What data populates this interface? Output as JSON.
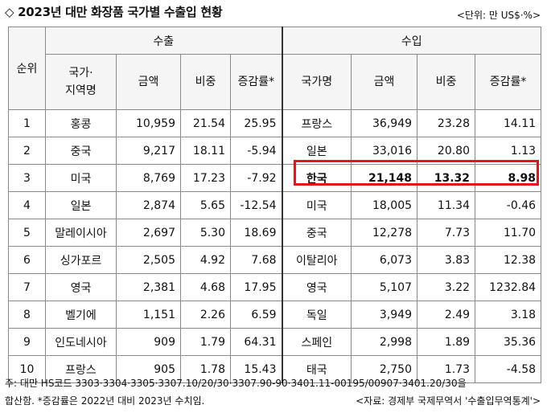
{
  "title": "◇ 2023년 대만 화장품 국가별 수출입 현황",
  "unit": "<단위: 만 US$·%>",
  "headers": {
    "rank": "순위",
    "export": "수출",
    "import": "수입",
    "export_cols": [
      "국가·\n지역명",
      "금액",
      "비중",
      "증감률*"
    ],
    "import_cols": [
      "국가명",
      "금액",
      "비중",
      "증감률*"
    ]
  },
  "rows": [
    {
      "rank": "1",
      "ex_country": "홍콩",
      "ex_amount": "10,959",
      "ex_share": "21.54",
      "ex_growth": "25.95",
      "im_country": "프랑스",
      "im_amount": "36,949",
      "im_share": "23.28",
      "im_growth": "14.11"
    },
    {
      "rank": "2",
      "ex_country": "중국",
      "ex_amount": "9,217",
      "ex_share": "18.11",
      "ex_growth": "-5.94",
      "im_country": "일본",
      "im_amount": "33,016",
      "im_share": "20.80",
      "im_growth": "1.13"
    },
    {
      "rank": "3",
      "ex_country": "미국",
      "ex_amount": "8,769",
      "ex_share": "17.23",
      "ex_growth": "-7.92",
      "im_country": "한국",
      "im_amount": "21,148",
      "im_share": "13.32",
      "im_growth": "8.98"
    },
    {
      "rank": "4",
      "ex_country": "일본",
      "ex_amount": "2,874",
      "ex_share": "5.65",
      "ex_growth": "-12.54",
      "im_country": "미국",
      "im_amount": "18,005",
      "im_share": "11.34",
      "im_growth": "-0.46"
    },
    {
      "rank": "5",
      "ex_country": "말레이시아",
      "ex_amount": "2,697",
      "ex_share": "5.30",
      "ex_growth": "18.69",
      "im_country": "중국",
      "im_amount": "12,278",
      "im_share": "7.73",
      "im_growth": "11.70"
    },
    {
      "rank": "6",
      "ex_country": "싱가포르",
      "ex_amount": "2,505",
      "ex_share": "4.92",
      "ex_growth": "7.68",
      "im_country": "이탈리아",
      "im_amount": "6,073",
      "im_share": "3.83",
      "im_growth": "12.38"
    },
    {
      "rank": "7",
      "ex_country": "영국",
      "ex_amount": "2,381",
      "ex_share": "4.68",
      "ex_growth": "17.95",
      "im_country": "영국",
      "im_amount": "5,107",
      "im_share": "3.22",
      "im_growth": "1232.84"
    },
    {
      "rank": "8",
      "ex_country": "벨기에",
      "ex_amount": "1,151",
      "ex_share": "2.26",
      "ex_growth": "6.59",
      "im_country": "독일",
      "im_amount": "3,949",
      "im_share": "2.49",
      "im_growth": "3.18"
    },
    {
      "rank": "9",
      "ex_country": "인도네시아",
      "ex_amount": "909",
      "ex_share": "1.79",
      "ex_growth": "64.31",
      "im_country": "스페인",
      "im_amount": "2,998",
      "im_share": "1.89",
      "im_growth": "35.36"
    },
    {
      "rank": "10",
      "ex_country": "프랑스",
      "ex_amount": "905",
      "ex_share": "1.78",
      "ex_growth": "15.43",
      "im_country": "태국",
      "im_amount": "2,750",
      "im_share": "1.73",
      "im_growth": "-4.58"
    }
  ],
  "highlight_color": "#e5141b",
  "notes": {
    "line1": "주: 대만 HS코드 3303·3304·3305·3307.10/20/30·3307.90-90·3401.11-00195/00907·3401.20/30을",
    "line2": "합산함. *증감률은 2022년 대비 2023년 수치임.",
    "source": "<자료: 경제부 국제무역서 '수출입무역통계'>"
  }
}
